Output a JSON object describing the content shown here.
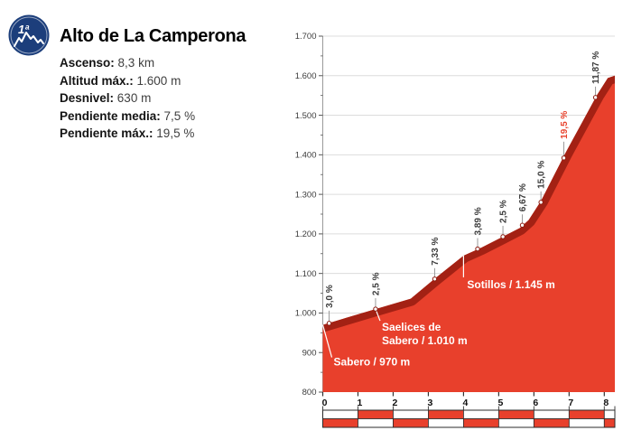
{
  "badge": {
    "category": "1ª",
    "icon": "mountain"
  },
  "title": "Alto de La Camperona",
  "stats": [
    {
      "label": "Ascenso:",
      "value": "8,3 km"
    },
    {
      "label": "Altitud máx.:",
      "value": "1.600 m"
    },
    {
      "label": "Desnivel:",
      "value": "630 m"
    },
    {
      "label": "Pendiente media:",
      "value": "7,5 %"
    },
    {
      "label": "Pendiente máx.:",
      "value": "19,5 %"
    }
  ],
  "chart_data": {
    "type": "area",
    "xlabel": "",
    "ylabel": "",
    "x_range": [
      0,
      8.3
    ],
    "y_range": [
      800,
      1700
    ],
    "grid": true,
    "y_ticks": [
      {
        "v": 800,
        "label": "800"
      },
      {
        "v": 900,
        "label": "900"
      },
      {
        "v": 1000,
        "label": "1.000"
      },
      {
        "v": 1100,
        "label": "1.100"
      },
      {
        "v": 1200,
        "label": "1.200"
      },
      {
        "v": 1300,
        "label": "1.300"
      },
      {
        "v": 1400,
        "label": "1.400"
      },
      {
        "v": 1500,
        "label": "1.500"
      },
      {
        "v": 1600,
        "label": "1.600"
      },
      {
        "v": 1700,
        "label": "1.700"
      }
    ],
    "x_ticks": [
      {
        "v": 0,
        "label": "0"
      },
      {
        "v": 1,
        "label": "1"
      },
      {
        "v": 2,
        "label": "2"
      },
      {
        "v": 3,
        "label": "3"
      },
      {
        "v": 4,
        "label": "4"
      },
      {
        "v": 5,
        "label": "5"
      },
      {
        "v": 6,
        "label": "6"
      },
      {
        "v": 7,
        "label": "7"
      },
      {
        "v": 8,
        "label": "8"
      }
    ],
    "profile_points_km_m": [
      [
        0,
        970
      ],
      [
        1.5,
        1010
      ],
      [
        2.5,
        1036
      ],
      [
        3.2,
        1088
      ],
      [
        4.0,
        1145
      ],
      [
        4.5,
        1165
      ],
      [
        5.1,
        1192
      ],
      [
        5.6,
        1215
      ],
      [
        5.85,
        1235
      ],
      [
        6.2,
        1283
      ],
      [
        6.9,
        1405
      ],
      [
        7.45,
        1495
      ],
      [
        7.8,
        1552
      ],
      [
        8.1,
        1594
      ],
      [
        8.3,
        1600
      ]
    ],
    "gradient_labels": [
      {
        "text": "3,0 %",
        "km": 0.18,
        "m": 974,
        "leader": 14,
        "highlight": false
      },
      {
        "text": "2,5 %",
        "km": 1.5,
        "m": 1010,
        "leader": 12,
        "highlight": false
      },
      {
        "text": "7,33 %",
        "km": 3.18,
        "m": 1086,
        "leader": 12,
        "highlight": false
      },
      {
        "text": "3,89 %",
        "km": 4.4,
        "m": 1162,
        "leader": 12,
        "highlight": false
      },
      {
        "text": "2,5 %",
        "km": 5.12,
        "m": 1193,
        "leader": 12,
        "highlight": false
      },
      {
        "text": "6,67 %",
        "km": 5.67,
        "m": 1222,
        "leader": 12,
        "highlight": false
      },
      {
        "text": "15,0 %",
        "km": 6.2,
        "m": 1280,
        "leader": 12,
        "highlight": false
      },
      {
        "text": "19,5 %",
        "km": 6.85,
        "m": 1392,
        "leader": 18,
        "highlight": true
      },
      {
        "text": "11,87 %",
        "km": 7.75,
        "m": 1545,
        "leader": 12,
        "highlight": false
      }
    ],
    "waypoints": [
      {
        "lines": [
          "Sabero / 970 m"
        ],
        "km": 0,
        "m": 970,
        "label_offset": [
          12,
          45
        ],
        "leader_end": [
          10,
          36
        ]
      },
      {
        "lines": [
          "Saelices de",
          "Sabero / 1.010 m"
        ],
        "km": 1.5,
        "m": 1010,
        "label_offset": [
          7,
          24
        ],
        "leader_end": [
          5,
          13
        ]
      },
      {
        "lines": [
          "Sotillos / 1.145 m"
        ],
        "km": 4.0,
        "m": 1145,
        "label_offset": [
          4,
          36
        ],
        "leader_end": [
          0,
          24
        ]
      }
    ],
    "km_scale_bar": {
      "boundaries_km": [
        0,
        1,
        2,
        3,
        4,
        5,
        6,
        7,
        8,
        8.3
      ],
      "pattern": "alternating-checker-2-rows"
    },
    "colors": {
      "area": "#e8402c",
      "edge_band": "#a32114",
      "accent_red": "#e8432d",
      "grid": "#dcdcdc",
      "axis": "#9a9a9a",
      "tick": "#555555",
      "label_gray": "#3c3c3c",
      "x_label": "#111111",
      "white": "#ffffff",
      "badge_blue": "#1c3e7b",
      "outline": "#2b2b2b"
    }
  }
}
